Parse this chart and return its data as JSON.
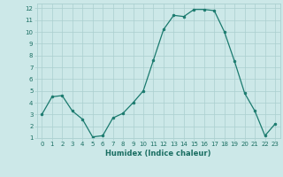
{
  "x": [
    0,
    1,
    2,
    3,
    4,
    5,
    6,
    7,
    8,
    9,
    10,
    11,
    12,
    13,
    14,
    15,
    16,
    17,
    18,
    19,
    20,
    21,
    22,
    23
  ],
  "y": [
    3,
    4.5,
    4.6,
    3.3,
    2.6,
    1.1,
    1.2,
    2.7,
    3.1,
    4.0,
    5.0,
    7.6,
    10.2,
    11.4,
    11.3,
    11.9,
    11.9,
    11.8,
    10.0,
    7.5,
    4.8,
    3.3,
    1.2,
    2.2
  ],
  "line_color": "#1a7a6e",
  "marker_color": "#1a7a6e",
  "bg_color": "#cce8e8",
  "grid_color": "#aacfcf",
  "xlabel": "Humidex (Indice chaleur)",
  "xlim": [
    -0.5,
    23.5
  ],
  "ylim": [
    1,
    12.4
  ],
  "xticks": [
    0,
    1,
    2,
    3,
    4,
    5,
    6,
    7,
    8,
    9,
    10,
    11,
    12,
    13,
    14,
    15,
    16,
    17,
    18,
    19,
    20,
    21,
    22,
    23
  ],
  "yticks": [
    1,
    2,
    3,
    4,
    5,
    6,
    7,
    8,
    9,
    10,
    11,
    12
  ],
  "font_color": "#1a6e62",
  "tick_fontsize": 5.0,
  "xlabel_fontsize": 6.0
}
